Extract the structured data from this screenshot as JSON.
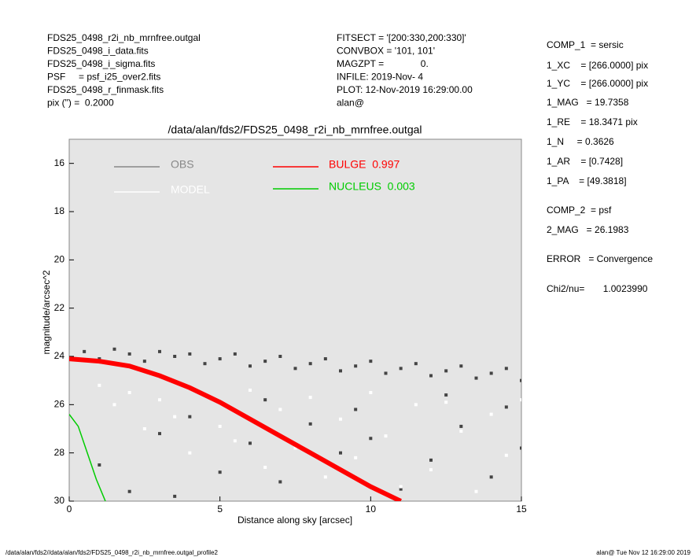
{
  "header": {
    "left": [
      "FDS25_0498_r2i_nb_mrnfree.outgal",
      "FDS25_0498_i_data.fits",
      "FDS25_0498_i_sigma.fits",
      "PSF     = psf_i25_over2.fits",
      "FDS25_0498_r_finmask.fits",
      "pix (\") =  0.2000"
    ],
    "middle": [
      "FITSECT = '[200:330,200:330]'",
      "CONVBOX = '101, 101'",
      "MAGZPT =              0.",
      "INFILE: 2019-Nov- 4",
      "PLOT: 12-Nov-2019 16:29:00.00",
      "alan@"
    ],
    "right": [
      "COMP_1  = sersic",
      "1_XC    = [266.0000] pix",
      "1_YC    = [266.0000] pix",
      "1_MAG   = 19.7358",
      "1_RE    = 18.3471 pix",
      "1_N     = 0.3626",
      "1_AR    = [0.7428]",
      "1_PA    = [49.3818]",
      "COMP_2  = psf",
      "2_MAG   = 26.1983",
      "ERROR   = Convergence",
      "Chi2/nu=       1.0023990"
    ]
  },
  "footer": {
    "left": "/data/alan/fds2//data/alan/fds2/FDS25_0498_r2i_nb_mrnfree.outgal_profile2",
    "right": "alan@  Tue Nov 12 16:29:00 2019"
  },
  "chart_data": {
    "type": "scatter",
    "title": "/data/alan/fds2/FDS25_0498_r2i_nb_mrnfree.outgal",
    "xlabel": "Distance along sky [arcsec]",
    "ylabel": "magnitude/arcsec^2",
    "xlim": [
      0,
      15
    ],
    "ylim": [
      30,
      15
    ],
    "xticks": [
      0,
      5,
      10,
      15
    ],
    "yticks": [
      16,
      18,
      20,
      22,
      24,
      26,
      28,
      30
    ],
    "series": [
      {
        "name": "OBS",
        "color": "#444444",
        "kind": "points",
        "x": [
          0.5,
          1,
          1.5,
          2,
          2.5,
          3,
          3.5,
          4,
          4.5,
          5,
          5.5,
          6,
          6.5,
          7,
          7.5,
          8,
          8.5,
          9,
          9.5,
          10,
          10.5,
          11,
          11.5,
          12,
          12.5,
          13,
          13.5,
          14,
          14.5,
          15,
          1,
          2,
          3,
          4,
          5,
          6,
          7,
          8,
          9,
          10,
          11,
          12,
          13,
          14,
          15,
          3.5,
          6.5,
          9.5,
          12.5,
          14.5
        ],
        "values": [
          23.8,
          24.1,
          23.7,
          23.9,
          24.2,
          23.8,
          24.0,
          23.9,
          24.3,
          24.1,
          23.9,
          24.4,
          24.2,
          24.0,
          24.5,
          24.3,
          24.1,
          24.6,
          24.4,
          24.2,
          24.7,
          24.5,
          24.3,
          24.8,
          24.6,
          24.4,
          24.9,
          24.7,
          24.5,
          25.0,
          28.5,
          29.6,
          27.2,
          26.5,
          28.8,
          27.6,
          29.2,
          26.8,
          28.0,
          27.4,
          29.5,
          28.3,
          26.9,
          29.0,
          27.8,
          29.8,
          25.8,
          26.2,
          25.6,
          26.1
        ]
      },
      {
        "name": "MODEL",
        "color": "#ffffff",
        "kind": "points",
        "x": [
          1,
          1.5,
          2,
          2.5,
          3,
          3.5,
          4,
          4.5,
          5,
          5.5,
          6,
          6.5,
          7,
          7.5,
          8,
          8.5,
          9,
          9.5,
          10,
          10.5,
          11,
          11.5,
          12,
          12.5,
          13,
          13.5,
          14,
          14.5,
          15
        ],
        "values": [
          25.2,
          26.0,
          25.5,
          27.0,
          25.8,
          26.5,
          28.0,
          25.6,
          26.9,
          27.5,
          25.4,
          28.6,
          26.2,
          27.8,
          25.7,
          29.0,
          26.6,
          28.2,
          25.5,
          27.3,
          29.4,
          26.0,
          28.7,
          25.9,
          27.1,
          29.6,
          26.4,
          28.1,
          25.8
        ]
      },
      {
        "name": "BULGE  0.997",
        "color": "#ff0000",
        "kind": "line",
        "x": [
          0,
          1,
          2,
          3,
          4,
          5,
          6,
          7,
          8,
          9,
          10,
          11
        ],
        "values": [
          24.1,
          24.2,
          24.4,
          24.8,
          25.3,
          25.9,
          26.6,
          27.3,
          28.0,
          28.7,
          29.4,
          30.0
        ]
      },
      {
        "name": "NUCLEUS  0.003",
        "color": "#00cc00",
        "kind": "line",
        "x": [
          0,
          0.3,
          0.6,
          0.9,
          1.2
        ],
        "values": [
          26.4,
          26.9,
          28.0,
          29.1,
          30.0
        ]
      }
    ]
  }
}
